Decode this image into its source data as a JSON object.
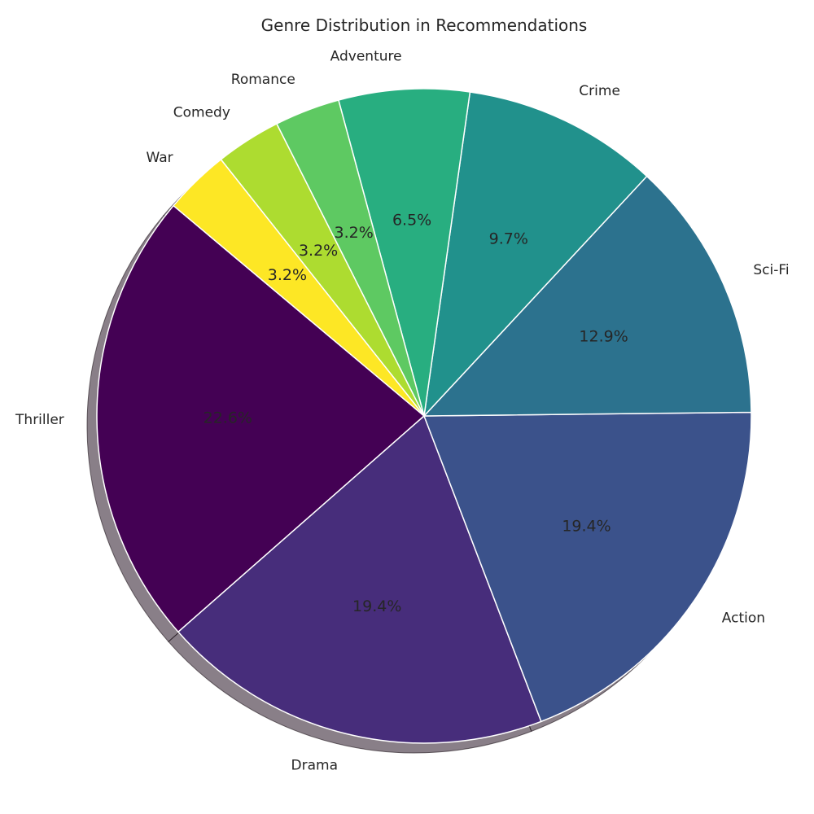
{
  "chart_data": {
    "type": "pie",
    "title": "Genre Distribution in Recommendations",
    "categories": [
      "Thriller",
      "Drama",
      "Action",
      "Sci-Fi",
      "Crime",
      "Adventure",
      "Romance",
      "Comedy",
      "War"
    ],
    "values": [
      7,
      6,
      6,
      4,
      3,
      2,
      1,
      1,
      1
    ],
    "percent_labels": [
      "22.6%",
      "19.4%",
      "19.4%",
      "12.9%",
      "9.7%",
      "6.5%",
      "3.2%",
      "3.2%",
      "3.2%"
    ],
    "colors": [
      "#440154",
      "#472d7b",
      "#3b528b",
      "#2c728e",
      "#21918c",
      "#28ae80",
      "#5ec962",
      "#addc30",
      "#fde725"
    ],
    "start_angle_deg": 140,
    "direction": "counterclockwise",
    "shadow": true,
    "legend": "none"
  }
}
